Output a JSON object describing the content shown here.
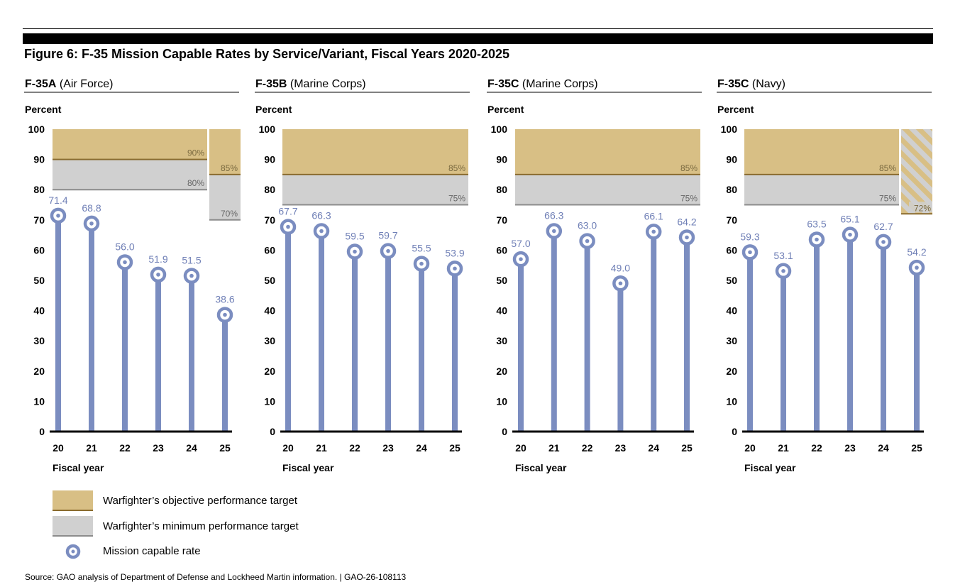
{
  "figure": {
    "title": "Figure 6: F-35 Mission Capable Rates by Service/Variant, Fiscal Years 2020-2025",
    "source": "Source: GAO analysis of Department of Defense and Lockheed Martin information.  |  GAO-26-108113"
  },
  "colors": {
    "objective": "#d8bf85",
    "objective_line": "#8a6b2e",
    "minimum": "#d0d0d0",
    "minimum_line": "#8c8c8c",
    "rate": "#7b8dc0",
    "label": "#6f7fb6",
    "target_text": "#7a6a40"
  },
  "legend": {
    "objective": "Warfighter’s objective performance target",
    "minimum": "Warfighter’s minimum performance target",
    "rate": "Mission capable rate"
  },
  "chart_data": [
    {
      "type": "lollipop",
      "title_bold": "F-35A",
      "title_rest": "(Air Force)",
      "ylabel": "Percent",
      "xlabel": "Fiscal year",
      "ylim": [
        0,
        100
      ],
      "yticks": [
        "0",
        "10",
        "20",
        "30",
        "40",
        "50",
        "60",
        "70",
        "80",
        "90",
        "100"
      ],
      "categories": [
        "20",
        "21",
        "22",
        "23",
        "24",
        "25"
      ],
      "values": [
        71.4,
        68.8,
        56.0,
        51.9,
        51.5,
        38.6
      ],
      "value_labels": [
        "71.4",
        "68.8",
        "56.0",
        "51.9",
        "51.5",
        "38.6"
      ],
      "targets": [
        {
          "objective": 90,
          "minimum": 80,
          "objective_label": "90%",
          "minimum_label": "80%",
          "years": [
            "20",
            "24"
          ]
        },
        {
          "objective": 85,
          "minimum": 70,
          "objective_label": "85%",
          "minimum_label": "70%",
          "years": [
            "25",
            "25"
          ]
        }
      ]
    },
    {
      "type": "lollipop",
      "title_bold": "F-35B",
      "title_rest": "(Marine Corps)",
      "ylabel": "Percent",
      "xlabel": "Fiscal year",
      "ylim": [
        0,
        100
      ],
      "yticks": [
        "0",
        "10",
        "20",
        "30",
        "40",
        "50",
        "60",
        "70",
        "80",
        "90",
        "100"
      ],
      "categories": [
        "20",
        "21",
        "22",
        "23",
        "24",
        "25"
      ],
      "values": [
        67.7,
        66.3,
        59.5,
        59.7,
        55.5,
        53.9
      ],
      "value_labels": [
        "67.7",
        "66.3",
        "59.5",
        "59.7",
        "55.5",
        "53.9"
      ],
      "targets": [
        {
          "objective": 85,
          "minimum": 75,
          "objective_label": "85%",
          "minimum_label": "75%",
          "years": [
            "20",
            "25"
          ]
        }
      ]
    },
    {
      "type": "lollipop",
      "title_bold": "F-35C",
      "title_rest": "(Marine Corps)",
      "ylabel": "Percent",
      "xlabel": "Fiscal year",
      "ylim": [
        0,
        100
      ],
      "yticks": [
        "0",
        "10",
        "20",
        "30",
        "40",
        "50",
        "60",
        "70",
        "80",
        "90",
        "100"
      ],
      "categories": [
        "20",
        "21",
        "22",
        "23",
        "24",
        "25"
      ],
      "values": [
        57.0,
        66.3,
        63.0,
        49.0,
        66.1,
        64.2
      ],
      "value_labels": [
        "57.0",
        "66.3",
        "63.0",
        "49.0",
        "66.1",
        "64.2"
      ],
      "targets": [
        {
          "objective": 85,
          "minimum": 75,
          "objective_label": "85%",
          "minimum_label": "75%",
          "years": [
            "20",
            "25"
          ]
        }
      ]
    },
    {
      "type": "lollipop",
      "title_bold": "F-35C",
      "title_rest": "(Navy)",
      "ylabel": "Percent",
      "xlabel": "Fiscal year",
      "ylim": [
        0,
        100
      ],
      "yticks": [
        "0",
        "10",
        "20",
        "30",
        "40",
        "50",
        "60",
        "70",
        "80",
        "90",
        "100"
      ],
      "categories": [
        "20",
        "21",
        "22",
        "23",
        "24",
        "25"
      ],
      "values": [
        59.3,
        53.1,
        63.5,
        65.1,
        62.7,
        54.2
      ],
      "value_labels": [
        "59.3",
        "53.1",
        "63.5",
        "65.1",
        "62.7",
        "54.2"
      ],
      "targets": [
        {
          "objective": 85,
          "minimum": 75,
          "objective_label": "85%",
          "minimum_label": "75%",
          "years": [
            "20",
            "24"
          ]
        },
        {
          "minimum": 72,
          "minimum_label": "72%",
          "years": [
            "25",
            "25"
          ],
          "hatched": true
        }
      ]
    }
  ]
}
